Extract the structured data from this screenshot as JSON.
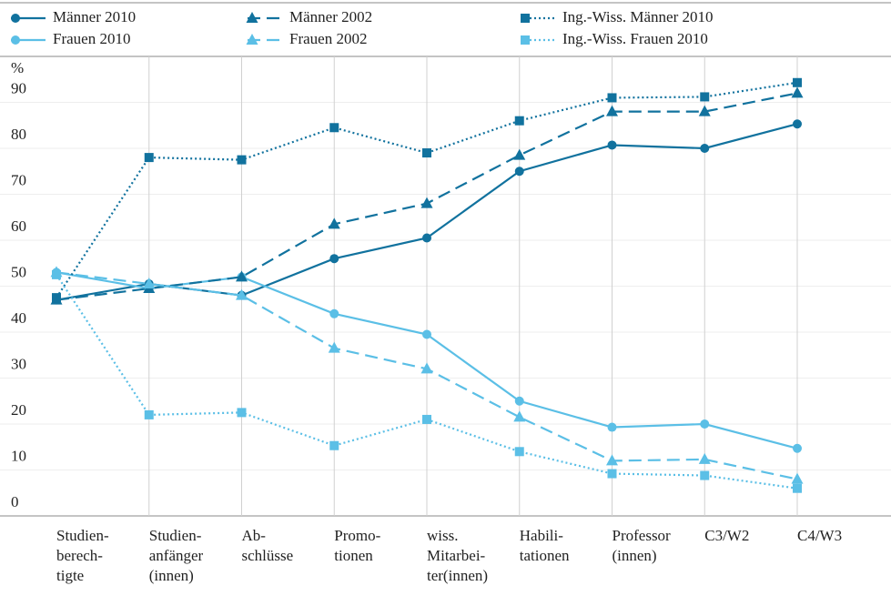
{
  "chart_data": {
    "type": "line",
    "y_label": "%",
    "categories": [
      [
        "Studien-",
        "berech-",
        "tigte"
      ],
      [
        "Studien-",
        "anfänger",
        "(innen)"
      ],
      [
        "Ab-",
        "schlüsse"
      ],
      [
        "Promo-",
        "tionen"
      ],
      [
        "wiss.",
        "Mitarbei-",
        "ter(innen)"
      ],
      [
        "Habili-",
        "tationen"
      ],
      [
        "Professor",
        "(innen)"
      ],
      [
        "C3/W2"
      ],
      [
        "C4/W3"
      ]
    ],
    "series": [
      {
        "name": "Männer 2010",
        "color": "#11729e",
        "dash": "solid",
        "marker": "circle",
        "values": [
          47,
          50.5,
          48,
          56,
          60.5,
          75,
          80.7,
          80,
          85.3
        ]
      },
      {
        "name": "Frauen 2010",
        "color": "#5bbfe6",
        "dash": "solid",
        "marker": "circle",
        "values": [
          53,
          49.5,
          52,
          44,
          39.5,
          25,
          19.3,
          20,
          14.7
        ]
      },
      {
        "name": "Männer 2002",
        "color": "#11729e",
        "dash": "dashed",
        "marker": "triangle",
        "values": [
          47,
          49.5,
          52,
          63.5,
          68,
          78.5,
          88,
          88,
          92
        ]
      },
      {
        "name": "Frauen 2002",
        "color": "#5bbfe6",
        "dash": "dashed",
        "marker": "triangle",
        "values": [
          53,
          50.5,
          48,
          36.5,
          32,
          21.5,
          12,
          12.3,
          8
        ]
      },
      {
        "name": "Ing.-Wiss. Männer 2010",
        "color": "#11729e",
        "dash": "dotted",
        "marker": "square",
        "values": [
          47.5,
          78,
          77.5,
          84.5,
          79,
          86,
          91,
          91.2,
          94.3
        ]
      },
      {
        "name": "Ing.-Wiss. Frauen 2010",
        "color": "#5bbfe6",
        "dash": "dotted",
        "marker": "square",
        "values": [
          52.5,
          22,
          22.5,
          15.3,
          21,
          14,
          9.2,
          8.8,
          6
        ]
      }
    ],
    "ylim": [
      0,
      100
    ],
    "yticks": [
      0,
      10,
      20,
      30,
      40,
      50,
      60,
      70,
      80,
      90
    ],
    "grid": true
  }
}
